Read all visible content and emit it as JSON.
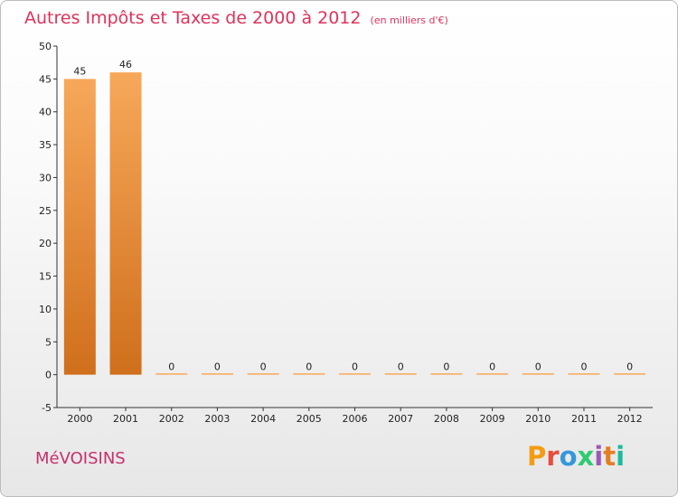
{
  "header": {
    "title": "Autres Impôts et Taxes de 2000 à 2012",
    "subtitle": "(en milliers d'€)"
  },
  "footer": {
    "commune": "MéVOISINS",
    "brand": "Proxiti",
    "brand_colors": [
      "#f39c12",
      "#e74c3c",
      "#3498db",
      "#2ecc71",
      "#9b59b6",
      "#e67e22",
      "#1abc9c"
    ]
  },
  "colors": {
    "title": "#e0325a",
    "bar_light": "#f7a85a",
    "bar_dark": "#cf6f1c"
  },
  "chart_data": {
    "type": "bar",
    "title": "Autres Impôts et Taxes de 2000 à 2012",
    "subtitle": "(en milliers d'€)",
    "categories": [
      "2000",
      "2001",
      "2002",
      "2003",
      "2004",
      "2005",
      "2006",
      "2007",
      "2008",
      "2009",
      "2010",
      "2011",
      "2012"
    ],
    "values": [
      45,
      46,
      0,
      0,
      0,
      0,
      0,
      0,
      0,
      0,
      0,
      0,
      0
    ],
    "data_labels": [
      "45",
      "46",
      "0",
      "0",
      "0",
      "0",
      "0",
      "0",
      "0",
      "0",
      "0",
      "0",
      "0"
    ],
    "ylim": [
      -5,
      50
    ],
    "yticks": [
      -5,
      0,
      5,
      10,
      15,
      20,
      25,
      30,
      35,
      40,
      45,
      50
    ],
    "xlabel": "",
    "ylabel": "",
    "grid": false,
    "legend": "none"
  }
}
